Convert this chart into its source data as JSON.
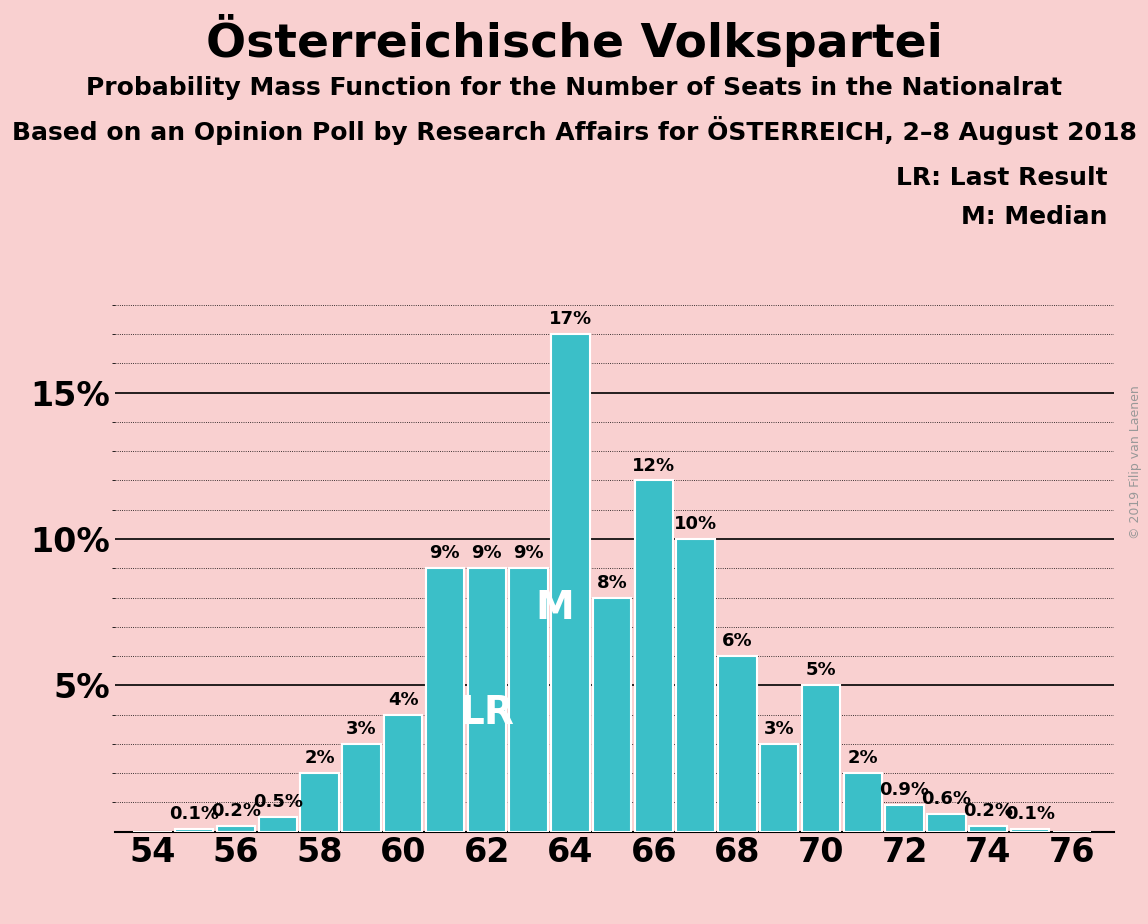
{
  "title": "Österreichische Volkspartei",
  "subtitle1": "Probability Mass Function for the Number of Seats in the Nationalrat",
  "subtitle2": "Based on an Opinion Poll by Research Affairs for ÖSTERREICH, 2–8 August 2018",
  "copyright": "© 2019 Filip van Laenen",
  "seats": [
    54,
    55,
    56,
    57,
    58,
    59,
    60,
    61,
    62,
    63,
    64,
    65,
    66,
    67,
    68,
    69,
    70,
    71,
    72,
    73,
    74,
    75,
    76
  ],
  "probs": [
    0.0,
    0.1,
    0.2,
    0.5,
    2.0,
    3.0,
    4.0,
    9.0,
    9.0,
    9.0,
    17.0,
    8.0,
    12.0,
    10.0,
    6.0,
    3.0,
    5.0,
    2.0,
    0.9,
    0.6,
    0.2,
    0.1,
    0.0
  ],
  "bar_color": "#3bbfc8",
  "background_color": "#f9d0d0",
  "text_color": "#000000",
  "LR_seat": 62,
  "M_seat": 64,
  "label_LR": "LR",
  "label_M": "M",
  "legend_LR": "LR: Last Result",
  "legend_M": "M: Median",
  "ylim_max": 18,
  "major_yticks": [
    0,
    5,
    10,
    15
  ],
  "minor_ytick_step": 1,
  "xtick_positions": [
    54,
    56,
    58,
    60,
    62,
    64,
    66,
    68,
    70,
    72,
    74,
    76
  ],
  "title_fontsize": 34,
  "subtitle1_fontsize": 18,
  "subtitle2_fontsize": 18,
  "bar_label_fontsize": 13,
  "ytick_fontsize": 24,
  "xtick_fontsize": 24,
  "legend_fontsize": 18,
  "watermark_fontsize": 9,
  "LR_label_fontsize": 28,
  "M_label_fontsize": 28
}
